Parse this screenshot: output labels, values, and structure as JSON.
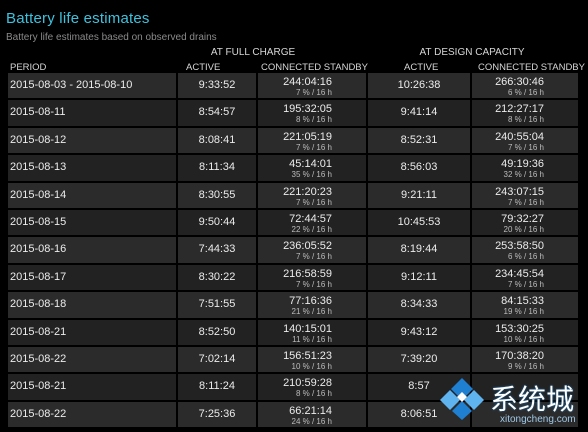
{
  "header": {
    "title": "Battery life estimates",
    "subtitle": "Battery life estimates based on observed drains"
  },
  "table": {
    "group_full": "AT FULL CHARGE",
    "group_design": "AT DESIGN CAPACITY",
    "columns": {
      "period": "PERIOD",
      "full_active": "ACTIVE",
      "full_standby": "CONNECTED STANDBY",
      "design_active": "ACTIVE",
      "design_standby": "CONNECTED STANDBY"
    },
    "rows": [
      {
        "period": "2015-08-03 - 2015-08-10",
        "full_active": "9:33:52",
        "full_standby": "244:04:16",
        "full_standby_sub": "7 % / 16 h",
        "design_active": "10:26:38",
        "design_standby": "266:30:46",
        "design_standby_sub": "6 % / 16 h"
      },
      {
        "period": "2015-08-11",
        "full_active": "8:54:57",
        "full_standby": "195:32:05",
        "full_standby_sub": "8 % / 16 h",
        "design_active": "9:41:14",
        "design_standby": "212:27:17",
        "design_standby_sub": "8 % / 16 h"
      },
      {
        "period": "2015-08-12",
        "full_active": "8:08:41",
        "full_standby": "221:05:19",
        "full_standby_sub": "7 % / 16 h",
        "design_active": "8:52:31",
        "design_standby": "240:55:04",
        "design_standby_sub": "7 % / 16 h"
      },
      {
        "period": "2015-08-13",
        "full_active": "8:11:34",
        "full_standby": "45:14:01",
        "full_standby_sub": "35 % / 16 h",
        "design_active": "8:56:03",
        "design_standby": "49:19:36",
        "design_standby_sub": "32 % / 16 h"
      },
      {
        "period": "2015-08-14",
        "full_active": "8:30:55",
        "full_standby": "221:20:23",
        "full_standby_sub": "7 % / 16 h",
        "design_active": "9:21:11",
        "design_standby": "243:07:15",
        "design_standby_sub": "7 % / 16 h"
      },
      {
        "period": "2015-08-15",
        "full_active": "9:50:44",
        "full_standby": "72:44:57",
        "full_standby_sub": "22 % / 16 h",
        "design_active": "10:45:53",
        "design_standby": "79:32:27",
        "design_standby_sub": "20 % / 16 h"
      },
      {
        "period": "2015-08-16",
        "full_active": "7:44:33",
        "full_standby": "236:05:52",
        "full_standby_sub": "7 % / 16 h",
        "design_active": "8:19:44",
        "design_standby": "253:58:50",
        "design_standby_sub": "6 % / 16 h"
      },
      {
        "period": "2015-08-17",
        "full_active": "8:30:22",
        "full_standby": "216:58:59",
        "full_standby_sub": "7 % / 16 h",
        "design_active": "9:12:11",
        "design_standby": "234:45:54",
        "design_standby_sub": "7 % / 16 h"
      },
      {
        "period": "2015-08-18",
        "full_active": "7:51:55",
        "full_standby": "77:16:36",
        "full_standby_sub": "21 % / 16 h",
        "design_active": "8:34:33",
        "design_standby": "84:15:33",
        "design_standby_sub": "19 % / 16 h"
      },
      {
        "period": "2015-08-21",
        "full_active": "8:52:50",
        "full_standby": "140:15:01",
        "full_standby_sub": "11 % / 16 h",
        "design_active": "9:43:12",
        "design_standby": "153:30:25",
        "design_standby_sub": "10 % / 16 h"
      },
      {
        "period": "2015-08-22",
        "full_active": "7:02:14",
        "full_standby": "156:51:23",
        "full_standby_sub": "10 % / 16 h",
        "design_active": "7:39:20",
        "design_standby": "170:38:20",
        "design_standby_sub": "9 % / 16 h"
      },
      {
        "period": "2015-08-21",
        "full_active": "8:11:24",
        "full_standby": "210:59:28",
        "full_standby_sub": "8 % / 16 h",
        "design_active": "8:57",
        "design_standby": "",
        "design_standby_sub": ""
      },
      {
        "period": "2015-08-22",
        "full_active": "7:25:36",
        "full_standby": "66:21:14",
        "full_standby_sub": "24 % / 16 h",
        "design_active": "8:06:51",
        "design_standby": "",
        "design_standby_sub": ""
      }
    ]
  },
  "watermark": {
    "text": "系统城",
    "url": "xitongcheng.com",
    "colors": {
      "blue": "#1f7fd1",
      "light": "#5fb4f0"
    }
  },
  "colors": {
    "accent": "#3ec3df",
    "row_odd": "#2b2b2b",
    "row_even": "#222222",
    "background": "#000000"
  }
}
